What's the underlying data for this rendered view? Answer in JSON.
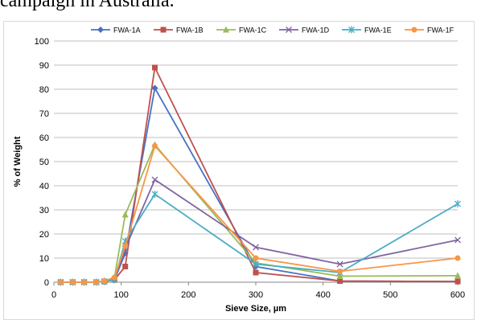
{
  "caption_fragment": "campaign in Australia.",
  "chart_data": {
    "type": "line",
    "xlabel": "Sieve Size, µm",
    "ylabel": "% of Weight",
    "xlim": [
      0,
      600
    ],
    "ylim": [
      0,
      100
    ],
    "x_ticks": [
      0,
      100,
      200,
      300,
      400,
      500,
      600
    ],
    "y_ticks": [
      0,
      10,
      20,
      30,
      40,
      50,
      60,
      70,
      80,
      90,
      100
    ],
    "grid": "horizontal",
    "legend_position": "top",
    "series": [
      {
        "name": "FWA-1A",
        "color": "#4472c4",
        "marker": "diamond",
        "x": [
          10,
          28,
          45,
          63,
          75,
          90,
          106,
          150,
          300,
          425,
          600
        ],
        "y": [
          0,
          0,
          0,
          0,
          0.5,
          1,
          12,
          80.5,
          6.5,
          0.5,
          0.3
        ]
      },
      {
        "name": "FWA-1B",
        "color": "#c0504d",
        "marker": "square",
        "x": [
          10,
          28,
          45,
          63,
          75,
          90,
          106,
          150,
          300,
          425,
          600
        ],
        "y": [
          0,
          0,
          0,
          0,
          0.3,
          1,
          6.5,
          89,
          4,
          0.5,
          0.3
        ]
      },
      {
        "name": "FWA-1C",
        "color": "#9bbb59",
        "marker": "triangle",
        "x": [
          10,
          28,
          45,
          63,
          75,
          90,
          106,
          150,
          300,
          425,
          600
        ],
        "y": [
          0,
          0,
          0,
          0,
          0.5,
          2,
          28,
          57,
          8,
          2.5,
          2.7
        ]
      },
      {
        "name": "FWA-1D",
        "color": "#8064a2",
        "marker": "x",
        "x": [
          10,
          28,
          45,
          63,
          75,
          90,
          106,
          150,
          300,
          425,
          600
        ],
        "y": [
          0,
          0,
          0,
          0,
          0.3,
          1,
          14,
          42.5,
          14.5,
          7.5,
          17.5
        ]
      },
      {
        "name": "FWA-1E",
        "color": "#4bacc6",
        "marker": "star",
        "x": [
          10,
          28,
          45,
          63,
          75,
          90,
          106,
          150,
          300,
          425,
          600
        ],
        "y": [
          0,
          0,
          0,
          0,
          0.3,
          1,
          17,
          36.5,
          7.5,
          4,
          32.5
        ]
      },
      {
        "name": "FWA-1F",
        "color": "#f79646",
        "marker": "circle",
        "x": [
          10,
          28,
          45,
          63,
          75,
          90,
          106,
          150,
          300,
          425,
          600
        ],
        "y": [
          0,
          0,
          0,
          0,
          0.5,
          2,
          15,
          56.5,
          10,
          4.5,
          10
        ]
      }
    ]
  }
}
